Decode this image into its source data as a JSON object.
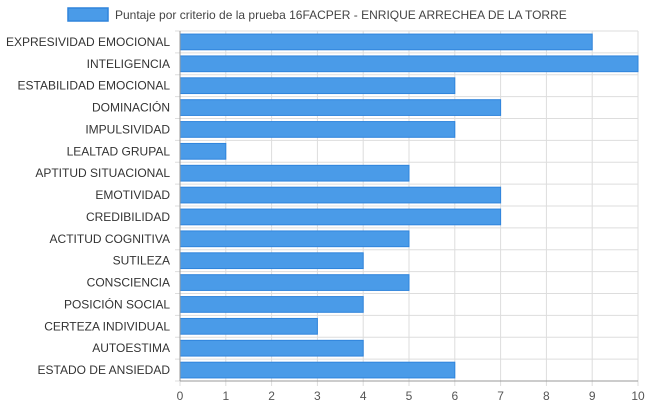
{
  "chart_data": {
    "type": "bar",
    "orientation": "horizontal",
    "title": "",
    "xlabel": "",
    "ylabel": "",
    "xlim": [
      0,
      10
    ],
    "x_ticks": [
      "0",
      "1",
      "2",
      "3",
      "4",
      "5",
      "6",
      "7",
      "8",
      "9",
      "10"
    ],
    "grid": true,
    "legend_position": "top",
    "colors": {
      "bar_fill": "#4a9be8",
      "bar_stroke": "#2f84dc",
      "grid": "#dddddd",
      "axis": "#999999"
    },
    "categories": [
      "EXPRESIVIDAD EMOCIONAL",
      "INTELIGENCIA",
      "ESTABILIDAD EMOCIONAL",
      "DOMINACIÓN",
      "IMPULSIVIDAD",
      "LEALTAD GRUPAL",
      "APTITUD SITUACIONAL",
      "EMOTIVIDAD",
      "CREDIBILIDAD",
      "ACTITUD COGNITIVA",
      "SUTILEZA",
      "CONSCIENCIA",
      "POSICIÓN SOCIAL",
      "CERTEZA INDIVIDUAL",
      "AUTOESTIMA",
      "ESTADO DE ANSIEDAD"
    ],
    "series": [
      {
        "name": "Puntaje por criterio de la prueba 16FACPER - ENRIQUE ARRECHEA DE LA TORRE",
        "values": [
          9,
          10,
          6,
          7,
          6,
          1,
          5,
          7,
          7,
          5,
          4,
          5,
          4,
          3,
          4,
          6
        ]
      }
    ]
  }
}
